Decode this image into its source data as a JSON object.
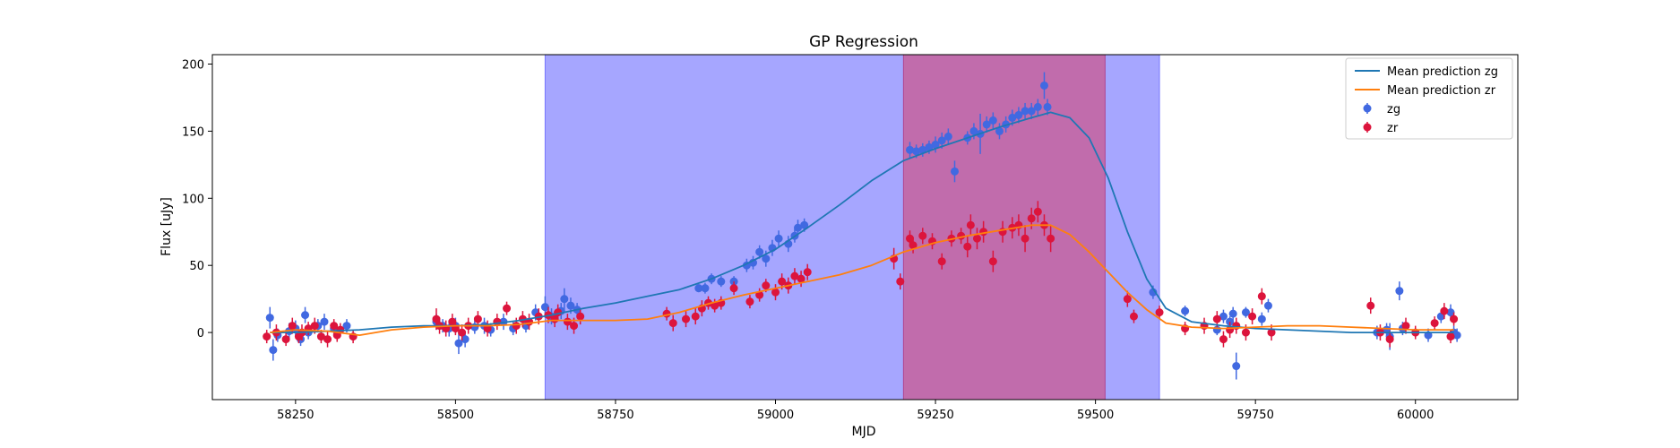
{
  "chart_data": {
    "type": "scatter",
    "title": "GP Regression",
    "xlabel": "MJD",
    "ylabel": "Flux [uJy]",
    "xlim": [
      58120,
      60160
    ],
    "ylim": [
      -50,
      207
    ],
    "xticks": [
      58250,
      58500,
      58750,
      59000,
      59250,
      59500,
      59750,
      60000
    ],
    "yticks": [
      0,
      50,
      100,
      150,
      200
    ],
    "grid": false,
    "legend_position": "top-right",
    "legend": [
      "Mean prediction zg",
      "Mean prediction zr",
      "zg",
      "zr"
    ],
    "shaded_regions": [
      {
        "x0": 58640,
        "x1": 59600,
        "color": "#a6a6ff"
      },
      {
        "x0": 59200,
        "x1": 59515,
        "color": "#c466a3"
      }
    ],
    "series": [
      {
        "name": "Mean prediction zg",
        "kind": "line",
        "color": "#1f77b4",
        "x": [
          58210,
          58250,
          58300,
          58350,
          58400,
          58450,
          58500,
          58550,
          58600,
          58650,
          58700,
          58750,
          58800,
          58850,
          58900,
          58950,
          59000,
          59050,
          59100,
          59150,
          59200,
          59250,
          59300,
          59350,
          59400,
          59430,
          59460,
          59490,
          59520,
          59550,
          59580,
          59610,
          59650,
          59700,
          59750,
          59800,
          59850,
          59900,
          59950,
          60000,
          60060
        ],
        "y": [
          0,
          0,
          1,
          2,
          4,
          5,
          5,
          6,
          9,
          13,
          18,
          22,
          27,
          32,
          40,
          50,
          62,
          78,
          95,
          113,
          128,
          137,
          145,
          153,
          160,
          164,
          160,
          145,
          115,
          75,
          40,
          18,
          8,
          5,
          3,
          2,
          1,
          0,
          0,
          0,
          0
        ]
      },
      {
        "name": "Mean prediction zr",
        "kind": "line",
        "color": "#ff7f0e",
        "x": [
          58210,
          58250,
          58300,
          58350,
          58400,
          58450,
          58500,
          58550,
          58600,
          58650,
          58700,
          58750,
          58800,
          58850,
          58900,
          58950,
          59000,
          59050,
          59100,
          59150,
          59200,
          59250,
          59300,
          59350,
          59400,
          59430,
          59460,
          59490,
          59520,
          59550,
          59580,
          59610,
          59650,
          59700,
          59750,
          59800,
          59850,
          59900,
          59950,
          60000,
          60060
        ],
        "y": [
          0,
          2,
          1,
          -2,
          2,
          4,
          5,
          5,
          6,
          9,
          9,
          9,
          10,
          15,
          22,
          28,
          33,
          38,
          43,
          50,
          60,
          67,
          72,
          76,
          80,
          80,
          73,
          60,
          45,
          30,
          17,
          7,
          4,
          3,
          4,
          5,
          5,
          4,
          3,
          2,
          2
        ]
      },
      {
        "name": "zg",
        "kind": "errorbar",
        "color": "#4169e1",
        "x": [
          58210,
          58215,
          58222,
          58240,
          58250,
          58258,
          58265,
          58270,
          58285,
          58295,
          58310,
          58330,
          58470,
          58480,
          58490,
          58500,
          58505,
          58515,
          58530,
          58545,
          58555,
          58575,
          58590,
          58610,
          58625,
          58640,
          58650,
          58665,
          58670,
          58680,
          58690,
          58880,
          58890,
          58900,
          58915,
          58935,
          58955,
          58965,
          58975,
          58985,
          58995,
          59005,
          59020,
          59030,
          59035,
          59045,
          59210,
          59220,
          59230,
          59240,
          59250,
          59260,
          59270,
          59280,
          59300,
          59310,
          59320,
          59330,
          59340,
          59350,
          59360,
          59370,
          59380,
          59390,
          59400,
          59410,
          59420,
          59425,
          59590,
          59640,
          59690,
          59700,
          59710,
          59715,
          59720,
          59735,
          59760,
          59770,
          59940,
          59955,
          59960,
          59975,
          59980,
          60020,
          60040,
          60055,
          60060,
          60065
        ],
        "y": [
          11,
          -13,
          -2,
          1,
          3,
          -5,
          13,
          0,
          5,
          8,
          3,
          5,
          8,
          5,
          3,
          5,
          -8,
          -5,
          4,
          5,
          2,
          8,
          3,
          5,
          15,
          19,
          12,
          16,
          25,
          20,
          17,
          33,
          33,
          40,
          38,
          38,
          50,
          52,
          60,
          55,
          63,
          70,
          66,
          72,
          78,
          80,
          136,
          135,
          136,
          138,
          140,
          143,
          146,
          120,
          145,
          150,
          148,
          155,
          158,
          150,
          155,
          160,
          162,
          165,
          165,
          168,
          184,
          168,
          30,
          16,
          2,
          12,
          8,
          14,
          -25,
          15,
          10,
          20,
          0,
          2,
          -3,
          31,
          3,
          -2,
          12,
          15,
          0,
          -2
        ],
        "err": [
          8,
          8,
          5,
          6,
          6,
          5,
          6,
          5,
          5,
          6,
          5,
          5,
          6,
          5,
          6,
          6,
          8,
          6,
          5,
          6,
          5,
          6,
          5,
          5,
          6,
          8,
          6,
          6,
          8,
          6,
          5,
          3,
          4,
          4,
          4,
          4,
          5,
          5,
          5,
          6,
          6,
          6,
          6,
          5,
          6,
          5,
          6,
          5,
          5,
          5,
          6,
          6,
          6,
          8,
          5,
          6,
          15,
          6,
          6,
          6,
          6,
          6,
          6,
          6,
          6,
          6,
          10,
          6,
          5,
          4,
          4,
          5,
          4,
          5,
          10,
          4,
          5,
          5,
          5,
          5,
          10,
          7,
          5,
          5,
          5,
          6,
          5,
          5
        ]
      },
      {
        "name": "zr",
        "kind": "errorbar",
        "color": "#dc143c",
        "x": [
          58205,
          58220,
          58235,
          58245,
          58255,
          58260,
          58270,
          58280,
          58290,
          58300,
          58310,
          58315,
          58320,
          58340,
          58470,
          58475,
          58485,
          58495,
          58500,
          58510,
          58520,
          58535,
          58550,
          58565,
          58580,
          58595,
          58605,
          58615,
          58630,
          58645,
          58655,
          58660,
          58675,
          58685,
          58695,
          58830,
          58840,
          58860,
          58875,
          58885,
          58895,
          58905,
          58915,
          58935,
          58960,
          58975,
          58985,
          59000,
          59010,
          59020,
          59030,
          59040,
          59050,
          59185,
          59195,
          59210,
          59215,
          59230,
          59245,
          59260,
          59275,
          59290,
          59300,
          59305,
          59315,
          59325,
          59340,
          59355,
          59370,
          59380,
          59390,
          59400,
          59410,
          59420,
          59430,
          59550,
          59560,
          59600,
          59640,
          59670,
          59690,
          59700,
          59710,
          59720,
          59735,
          59745,
          59760,
          59775,
          59930,
          59945,
          59960,
          59985,
          60000,
          60030,
          60045,
          60055,
          60060
        ],
        "y": [
          -3,
          0,
          -5,
          5,
          -3,
          0,
          3,
          5,
          -3,
          -5,
          5,
          -2,
          2,
          -3,
          10,
          5,
          3,
          8,
          3,
          0,
          5,
          10,
          3,
          8,
          18,
          5,
          10,
          8,
          12,
          13,
          10,
          15,
          8,
          5,
          12,
          14,
          7,
          10,
          12,
          18,
          22,
          20,
          22,
          33,
          23,
          28,
          35,
          30,
          38,
          35,
          42,
          40,
          45,
          55,
          38,
          70,
          65,
          72,
          68,
          53,
          70,
          72,
          64,
          80,
          70,
          75,
          53,
          75,
          78,
          80,
          70,
          85,
          90,
          80,
          70,
          25,
          12,
          15,
          3,
          5,
          10,
          -5,
          2,
          5,
          0,
          12,
          27,
          0,
          20,
          0,
          -5,
          5,
          0,
          7,
          16,
          -3,
          10
        ],
        "err": [
          5,
          6,
          5,
          6,
          5,
          6,
          5,
          6,
          5,
          6,
          5,
          5,
          5,
          5,
          8,
          6,
          6,
          6,
          5,
          6,
          6,
          6,
          6,
          6,
          5,
          6,
          6,
          6,
          6,
          6,
          6,
          6,
          6,
          6,
          6,
          5,
          6,
          6,
          6,
          6,
          5,
          5,
          5,
          5,
          5,
          5,
          5,
          6,
          6,
          6,
          6,
          6,
          6,
          8,
          6,
          6,
          6,
          6,
          6,
          6,
          6,
          6,
          8,
          8,
          8,
          8,
          8,
          8,
          8,
          8,
          10,
          8,
          8,
          8,
          10,
          6,
          5,
          5,
          5,
          6,
          6,
          6,
          6,
          6,
          6,
          6,
          6,
          6,
          6,
          6,
          6,
          6,
          5,
          5,
          6,
          5,
          5
        ]
      }
    ]
  }
}
